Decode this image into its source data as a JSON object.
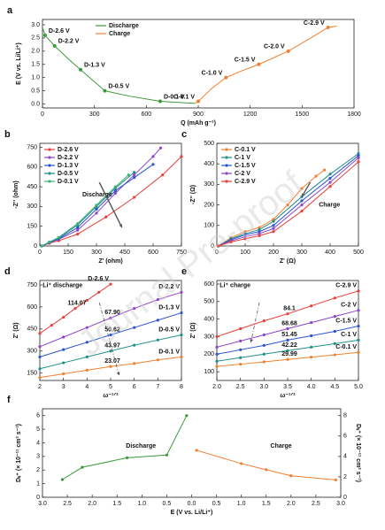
{
  "watermark": "Journal Pre-proof",
  "chart_data": [
    {
      "panel": "a",
      "type": "line",
      "xlabel": "Q (mAh g⁻¹)",
      "ylabel": "E (V vs. Li/Li⁺)",
      "xlim": [
        0,
        1800
      ],
      "xticks": [
        0,
        300,
        600,
        900,
        1200,
        1500,
        1800
      ],
      "ylim": [
        -0.15,
        3.2
      ],
      "yticks": [
        {
          "value": 0,
          "label": "0.0"
        },
        0.5,
        {
          "value": 1,
          "label": "1.0"
        },
        1.5,
        {
          "value": 2,
          "label": "2.0"
        },
        2.5,
        {
          "value": 3,
          "label": "3.0"
        }
      ],
      "legend": "upper-left",
      "series": [
        {
          "name": "Discharge",
          "color": "#3a9a3a",
          "x": [
            0,
            15,
            70,
            150,
            220,
            360,
            500,
            680,
            880
          ],
          "values": [
            2.9,
            2.6,
            2.2,
            1.7,
            1.3,
            0.5,
            0.3,
            0.1,
            0.02
          ],
          "point_labels": [
            null,
            "D-2.6 V",
            "D-2.2 V",
            null,
            "D-1.3 V",
            "D-0.5 V",
            null,
            "D-0.1 V",
            null
          ]
        },
        {
          "name": "Charge",
          "color": "#f08030",
          "x": [
            880,
            900,
            980,
            1060,
            1150,
            1250,
            1420,
            1550,
            1650,
            1700
          ],
          "values": [
            0.02,
            0.1,
            0.6,
            1.0,
            1.25,
            1.5,
            2.0,
            2.5,
            2.9,
            2.95
          ],
          "point_labels": [
            null,
            "C-0.1 V",
            null,
            "C-1.0 V",
            null,
            "C-1.5 V",
            "C-2.0 V",
            null,
            "C-2.9 V",
            null
          ]
        }
      ]
    },
    {
      "panel": "b",
      "type": "line",
      "xlabel": "Z' (ohm)",
      "ylabel": "-Z'' (ohm)",
      "annotation": "Discharge",
      "xlim": [
        0,
        750
      ],
      "xticks": [
        0,
        150,
        300,
        450,
        600,
        750
      ],
      "ylim": [
        0,
        780
      ],
      "yticks": [
        0,
        150,
        300,
        450,
        600,
        750
      ],
      "legend": "upper-left",
      "series": [
        {
          "name": "D-2.6 V",
          "color": "#e8403a",
          "x": [
            10,
            50,
            100,
            200,
            350,
            500,
            650,
            750
          ],
          "values": [
            0,
            20,
            40,
            90,
            220,
            370,
            540,
            680
          ]
        },
        {
          "name": "D-2.2 V",
          "color": "#8e44c8",
          "x": [
            10,
            50,
            100,
            200,
            300,
            400,
            500,
            600,
            640
          ],
          "values": [
            0,
            25,
            50,
            120,
            250,
            400,
            540,
            680,
            745
          ]
        },
        {
          "name": "D-1.3 V",
          "color": "#2a55d0",
          "x": [
            10,
            50,
            100,
            200,
            300,
            400,
            500,
            600
          ],
          "values": [
            0,
            25,
            55,
            140,
            280,
            420,
            520,
            620
          ]
        },
        {
          "name": "D-0.5 V",
          "color": "#1e8f8a",
          "x": [
            10,
            50,
            100,
            200,
            300,
            400,
            500
          ],
          "values": [
            0,
            30,
            60,
            160,
            300,
            440,
            560
          ]
        },
        {
          "name": "D-0.1 V",
          "color": "#3cb371",
          "x": [
            10,
            50,
            100,
            200,
            300,
            400,
            470
          ],
          "values": [
            0,
            30,
            65,
            170,
            310,
            450,
            540
          ]
        }
      ]
    },
    {
      "panel": "c",
      "type": "line",
      "xlabel": "Z' (Ω)",
      "ylabel": "-Z'' (Ω)",
      "annotation": "Charge",
      "xlim": [
        0,
        500
      ],
      "xticks": [
        0,
        100,
        200,
        300,
        400,
        500
      ],
      "ylim": [
        0,
        500
      ],
      "yticks": [
        0,
        100,
        200,
        300,
        400,
        500
      ],
      "legend": "upper-left",
      "series": [
        {
          "name": "C-0.1 V",
          "color": "#f08030",
          "x": [
            5,
            50,
            100,
            150,
            200,
            250,
            300,
            350,
            380
          ],
          "values": [
            0,
            40,
            70,
            90,
            130,
            200,
            280,
            340,
            370
          ]
        },
        {
          "name": "C-1 V",
          "color": "#1e8f8a",
          "x": [
            5,
            50,
            100,
            150,
            200,
            300,
            400,
            500
          ],
          "values": [
            0,
            35,
            60,
            80,
            120,
            240,
            350,
            450
          ]
        },
        {
          "name": "C-1.5 V",
          "color": "#2a55d0",
          "x": [
            5,
            50,
            100,
            150,
            200,
            300,
            400,
            500
          ],
          "values": [
            0,
            30,
            55,
            70,
            100,
            220,
            330,
            440
          ]
        },
        {
          "name": "C-2 V",
          "color": "#8e44c8",
          "x": [
            5,
            50,
            100,
            150,
            200,
            300,
            400,
            500
          ],
          "values": [
            0,
            25,
            45,
            60,
            85,
            200,
            310,
            430
          ]
        },
        {
          "name": "C-2.9 V",
          "color": "#e8403a",
          "x": [
            5,
            50,
            100,
            150,
            200,
            300,
            400,
            500
          ],
          "values": [
            0,
            20,
            35,
            50,
            70,
            170,
            290,
            410
          ]
        }
      ]
    },
    {
      "panel": "d",
      "type": "line",
      "xlabel": "ω⁻¹ᐟ²",
      "ylabel": "Z' (Ω)",
      "annotation": "Li⁺ discharge",
      "xlim": [
        2,
        8
      ],
      "xticks": [
        2,
        3,
        4,
        5,
        6,
        7,
        8
      ],
      "ylim": [
        100,
        780
      ],
      "yticks": [
        150,
        300,
        450,
        600,
        750
      ],
      "series": [
        {
          "name": "D-2.6 V",
          "slope": "114.07",
          "color": "#e8403a",
          "x": [
            2,
            2.5,
            3,
            3.5,
            4,
            4.5,
            5
          ],
          "values": [
            420,
            475,
            530,
            590,
            645,
            700,
            755
          ]
        },
        {
          "name": "D-2.2 V",
          "slope": "67.90",
          "color": "#8e44c8",
          "x": [
            2,
            3,
            4,
            5,
            6,
            7,
            8
          ],
          "values": [
            330,
            395,
            460,
            525,
            590,
            650,
            700
          ]
        },
        {
          "name": "D-1.3 V",
          "slope": "50.62",
          "color": "#2a55d0",
          "x": [
            2,
            3,
            4,
            5,
            6,
            7,
            8
          ],
          "values": [
            260,
            310,
            360,
            410,
            460,
            510,
            560
          ]
        },
        {
          "name": "D-0.5 V",
          "slope": "43.97",
          "color": "#1e8f8a",
          "x": [
            2,
            3,
            4,
            5,
            6,
            7,
            8
          ],
          "values": [
            180,
            220,
            260,
            300,
            340,
            375,
            410
          ]
        },
        {
          "name": "D-0.1 V",
          "slope": "23.07",
          "color": "#f08030",
          "x": [
            2,
            3,
            4,
            5,
            6,
            7,
            8
          ],
          "values": [
            120,
            145,
            170,
            195,
            215,
            240,
            260
          ]
        }
      ]
    },
    {
      "panel": "e",
      "type": "line",
      "xlabel": "ω⁻¹ᐟ²",
      "ylabel": "Z' (Ω)",
      "annotation": "Li⁺ charge",
      "xlim": [
        2,
        5
      ],
      "xticks": [
        {
          "value": 2,
          "label": "2.0"
        },
        2.5,
        {
          "value": 3,
          "label": "3.0"
        },
        3.5,
        {
          "value": 4,
          "label": "4.0"
        },
        4.5,
        {
          "value": 5,
          "label": "5.0"
        }
      ],
      "ylim": [
        50,
        620
      ],
      "yticks": [
        100,
        200,
        300,
        400,
        500,
        600
      ],
      "series": [
        {
          "name": "C-2.9 V",
          "slope": "84.1",
          "color": "#e8403a",
          "x": [
            2,
            2.5,
            3,
            3.5,
            4,
            4.5,
            5
          ],
          "values": [
            300,
            345,
            390,
            430,
            475,
            520,
            560
          ]
        },
        {
          "name": "C-2 V",
          "slope": "68.68",
          "color": "#8e44c8",
          "x": [
            2,
            2.5,
            3,
            3.5,
            4,
            4.5,
            5
          ],
          "values": [
            240,
            275,
            310,
            345,
            380,
            415,
            450
          ]
        },
        {
          "name": "C-1.5 V",
          "slope": "51.45",
          "color": "#2a55d0",
          "x": [
            2,
            2.5,
            3,
            3.5,
            4,
            4.5,
            5
          ],
          "values": [
            200,
            225,
            250,
            280,
            305,
            330,
            360
          ]
        },
        {
          "name": "C-1 V",
          "slope": "42.22",
          "color": "#1e8f8a",
          "x": [
            2,
            2.5,
            3,
            3.5,
            4,
            4.5,
            5
          ],
          "values": [
            160,
            180,
            200,
            220,
            240,
            260,
            280
          ]
        },
        {
          "name": "C-0.1 V",
          "slope": "29.99",
          "color": "#f08030",
          "x": [
            2,
            2.5,
            3,
            3.5,
            4,
            4.5,
            5
          ],
          "values": [
            130,
            143,
            156,
            170,
            183,
            196,
            210
          ]
        }
      ]
    },
    {
      "panel": "f",
      "type": "line",
      "xlabel": "E (V vs. Li/Li⁺)",
      "ylabel": "Dₗᵢ⁺ (× 10⁻¹¹ cm² s⁻¹)",
      "y2label": "Dₗᵢ⁺ (× 10⁻¹¹ cm² s⁻¹)",
      "xlim": [
        3.0,
        0.0
      ],
      "xticks": [
        {
          "value": 3,
          "label": "3.0"
        },
        2.5,
        {
          "value": 2,
          "label": "2.0"
        },
        1.5,
        {
          "value": 1,
          "label": "1.0"
        },
        0.5,
        {
          "value": 0,
          "label": "0.0"
        }
      ],
      "x2lim": [
        0.0,
        3.0
      ],
      "x2ticks": [
        0.5,
        {
          "value": 1,
          "label": "1.0"
        },
        1.5,
        {
          "value": 2,
          "label": "2.0"
        },
        2.5,
        {
          "value": 3,
          "label": "3.0"
        }
      ],
      "ylim": [
        0,
        6.5
      ],
      "yticks": [
        0,
        1,
        2,
        3,
        4,
        5,
        6
      ],
      "y2lim": [
        0,
        8.67
      ],
      "y2ticks": [
        0,
        2,
        4,
        6,
        8
      ],
      "series": [
        {
          "name": "Discharge",
          "color": "#3a9a3a",
          "x": [
            2.6,
            2.2,
            1.3,
            0.5,
            0.1
          ],
          "values": [
            1.3,
            2.2,
            2.9,
            3.1,
            6.0
          ]
        },
        {
          "name": "Charge",
          "color": "#f08030",
          "axis": "y2",
          "x_axis": "x2",
          "x": [
            0.1,
            1.0,
            1.5,
            2.0,
            2.9
          ],
          "values": [
            4.6,
            3.3,
            2.7,
            2.1,
            1.7
          ]
        }
      ]
    }
  ]
}
